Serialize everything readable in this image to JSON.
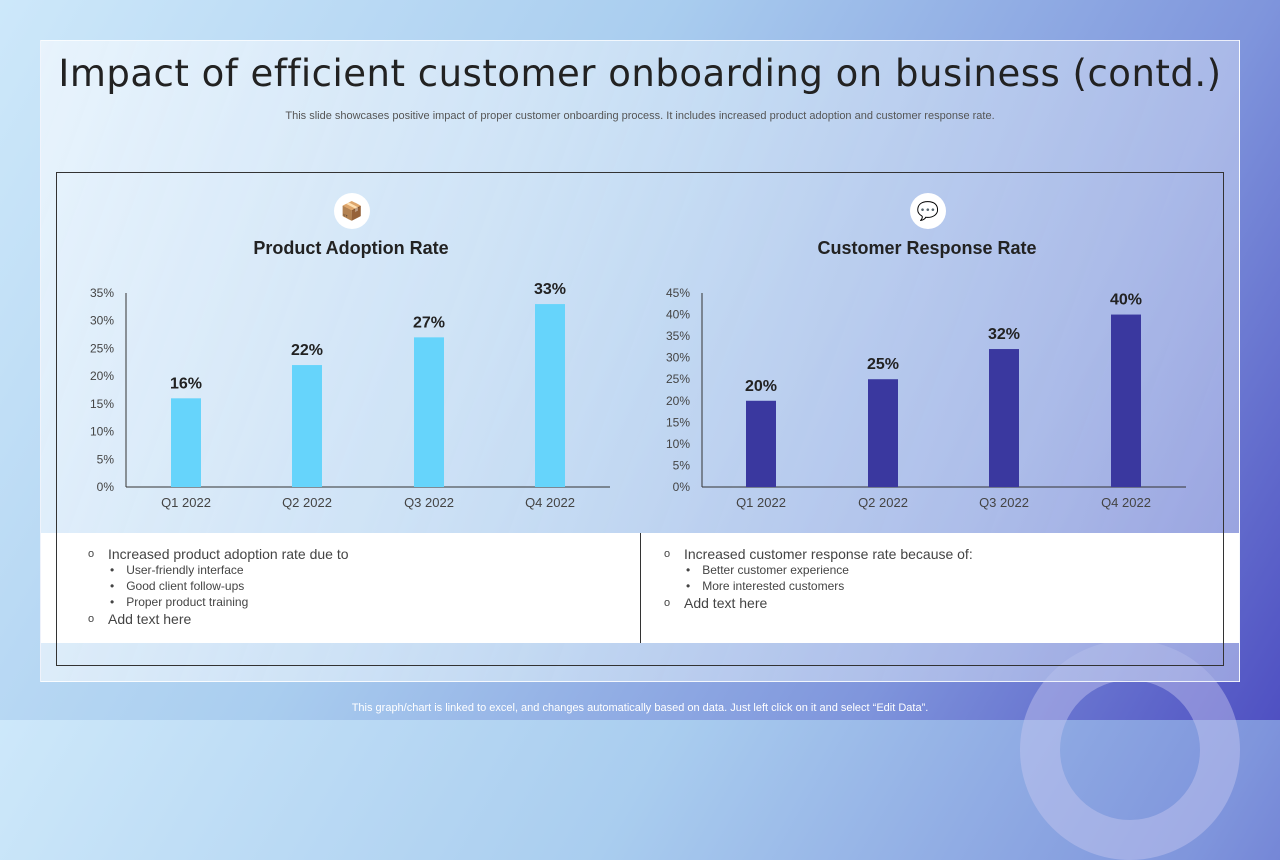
{
  "title": "Impact of efficient customer onboarding on business (contd.)",
  "subtitle": "This slide showcases positive impact of proper customer onboarding process. It includes increased product adoption and customer response rate.",
  "footer": "This graph/chart is linked to excel,  and changes automatically based on data. Just left click on it and select “Edit Data”.",
  "chart_data": [
    {
      "type": "bar",
      "title": "Product Adoption Rate",
      "icon": "person-with-box-icon",
      "categories": [
        "Q1 2022",
        "Q2 2022",
        "Q3 2022",
        "Q4 2022"
      ],
      "values": [
        16,
        22,
        27,
        33
      ],
      "data_labels": [
        "16%",
        "22%",
        "27%",
        "33%"
      ],
      "ylim": [
        0,
        35
      ],
      "yticks": [
        "0%",
        "5%",
        "10%",
        "15%",
        "20%",
        "25%",
        "30%",
        "35%"
      ],
      "color": "#66d4fb",
      "grid": false
    },
    {
      "type": "bar",
      "title": "Customer Response Rate",
      "icon": "question-chat-icon",
      "categories": [
        "Q1 2022",
        "Q2 2022",
        "Q3 2022",
        "Q4 2022"
      ],
      "values": [
        20,
        25,
        32,
        40
      ],
      "data_labels": [
        "20%",
        "25%",
        "32%",
        "40%"
      ],
      "ylim": [
        0,
        45
      ],
      "yticks": [
        "0%",
        "5%",
        "10%",
        "15%",
        "20%",
        "25%",
        "30%",
        "35%",
        "40%",
        "45%"
      ],
      "color": "#3a389f",
      "grid": false
    }
  ],
  "notes": [
    {
      "items": [
        {
          "text": "Increased product adoption rate due to",
          "sub": [
            "User-friendly  interface",
            "Good client follow-ups",
            "Proper product training"
          ]
        },
        {
          "text": "Add text here",
          "sub": []
        }
      ]
    },
    {
      "items": [
        {
          "text": "Increased customer response rate because of:",
          "sub": [
            "Better customer experience",
            "More interested customers"
          ]
        },
        {
          "text": "Add text here",
          "sub": []
        }
      ]
    }
  ]
}
